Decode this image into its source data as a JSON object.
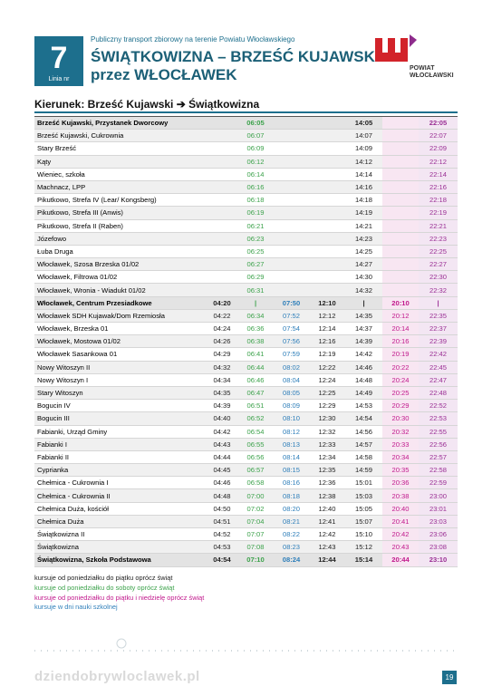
{
  "header": {
    "line_number": "7",
    "line_label": "Linia nr",
    "subtitle": "Publiczny transport zbiorowy na terenie Powiatu Włocławskiego",
    "title": "ŚWIĄTKOWIZNA – BRZEŚĆ KUJAWSKI",
    "title_line2": "przez WŁOCŁAWEK",
    "logo_text": "POWIAT WŁOCŁAWSKI"
  },
  "direction": "Kierunek: Brześć Kujawski ➔ Świątkowizna",
  "table": {
    "rows": [
      [
        "Brześć Kujawski, Przystanek Dworcowy",
        null,
        "06:05",
        null,
        null,
        "14:05",
        null,
        "22:05"
      ],
      [
        "Brześć Kujawski, Cukrownia",
        null,
        "06:07",
        null,
        null,
        "14:07",
        null,
        "22:07"
      ],
      [
        "Stary Brześć",
        null,
        "06:09",
        null,
        null,
        "14:09",
        null,
        "22:09"
      ],
      [
        "Kąty",
        null,
        "06:12",
        null,
        null,
        "14:12",
        null,
        "22:12"
      ],
      [
        "Wieniec, szkoła",
        null,
        "06:14",
        null,
        null,
        "14:14",
        null,
        "22:14"
      ],
      [
        "Machnacz, LPP",
        null,
        "06:16",
        null,
        null,
        "14:16",
        null,
        "22:16"
      ],
      [
        "Pikutkowo, Strefa IV (Lear/ Kongsberg)",
        null,
        "06:18",
        null,
        null,
        "14:18",
        null,
        "22:18"
      ],
      [
        "Pikutkowo, Strefa III (Anwis)",
        null,
        "06:19",
        null,
        null,
        "14:19",
        null,
        "22:19"
      ],
      [
        "Pikutkowo, Strefa II (Raben)",
        null,
        "06:21",
        null,
        null,
        "14:21",
        null,
        "22:21"
      ],
      [
        "Józefowo",
        null,
        "06:23",
        null,
        null,
        "14:23",
        null,
        "22:23"
      ],
      [
        "Łuba Druga",
        null,
        "06:25",
        null,
        null,
        "14:25",
        null,
        "22:25"
      ],
      [
        "Włocławek, Szosa Brzeska 01/02",
        null,
        "06:27",
        null,
        null,
        "14:27",
        null,
        "22:27"
      ],
      [
        "Włocławek, Filtrowa 01/02",
        null,
        "06:29",
        null,
        null,
        "14:30",
        null,
        "22:30"
      ],
      [
        "Włocławek, Wronia - Wiadukt 01/02",
        null,
        "06:31",
        null,
        null,
        "14:32",
        null,
        "22:32"
      ],
      [
        "Włocławek, Centrum Przesiadkowe",
        "04:20",
        "|",
        "07:50",
        "12:10",
        "|",
        "20:10",
        "|"
      ],
      [
        "Włocławek SDH Kujawak/Dom Rzemiosła",
        "04:22",
        "06:34",
        "07:52",
        "12:12",
        "14:35",
        "20:12",
        "22:35"
      ],
      [
        "Włocławek, Brzeska 01",
        "04:24",
        "06:36",
        "07:54",
        "12:14",
        "14:37",
        "20:14",
        "22:37"
      ],
      [
        "Włocławek, Mostowa 01/02",
        "04:26",
        "06:38",
        "07:56",
        "12:16",
        "14:39",
        "20:16",
        "22:39"
      ],
      [
        "Włocławek Sasankowa 01",
        "04:29",
        "06:41",
        "07:59",
        "12:19",
        "14:42",
        "20:19",
        "22:42"
      ],
      [
        "Nowy Witoszyn II",
        "04:32",
        "06:44",
        "08:02",
        "12:22",
        "14:46",
        "20:22",
        "22:45"
      ],
      [
        "Nowy Witoszyn I",
        "04:34",
        "06:46",
        "08:04",
        "12:24",
        "14:48",
        "20:24",
        "22:47"
      ],
      [
        "Stary Witoszyn",
        "04:35",
        "06:47",
        "08:05",
        "12:25",
        "14:49",
        "20:25",
        "22:48"
      ],
      [
        "Bogucin IV",
        "04:39",
        "06:51",
        "08:09",
        "12:29",
        "14:53",
        "20:29",
        "22:52"
      ],
      [
        "Bogucin III",
        "04:40",
        "06:52",
        "08:10",
        "12:30",
        "14:54",
        "20:30",
        "22:53"
      ],
      [
        "Fabianki, Urząd Gminy",
        "04:42",
        "06:54",
        "08:12",
        "12:32",
        "14:56",
        "20:32",
        "22:55"
      ],
      [
        "Fabianki I",
        "04:43",
        "06:55",
        "08:13",
        "12:33",
        "14:57",
        "20:33",
        "22:56"
      ],
      [
        "Fabianki II",
        "04:44",
        "06:56",
        "08:14",
        "12:34",
        "14:58",
        "20:34",
        "22:57"
      ],
      [
        "Cyprianka",
        "04:45",
        "06:57",
        "08:15",
        "12:35",
        "14:59",
        "20:35",
        "22:58"
      ],
      [
        "Chełmica - Cukrownia I",
        "04:46",
        "06:58",
        "08:16",
        "12:36",
        "15:01",
        "20:36",
        "22:59"
      ],
      [
        "Chełmica - Cukrownia II",
        "04:48",
        "07:00",
        "08:18",
        "12:38",
        "15:03",
        "20:38",
        "23:00"
      ],
      [
        "Chełmica Duża, kościół",
        "04:50",
        "07:02",
        "08:20",
        "12:40",
        "15:05",
        "20:40",
        "23:01"
      ],
      [
        "Chełmica Duża",
        "04:51",
        "07:04",
        "08:21",
        "12:41",
        "15:07",
        "20:41",
        "23:03"
      ],
      [
        "Świątkowizna II",
        "04:52",
        "07:07",
        "08:22",
        "12:42",
        "15:10",
        "20:42",
        "23:06"
      ],
      [
        "Świątkowizna",
        "04:53",
        "07:08",
        "08:23",
        "12:43",
        "15:12",
        "20:43",
        "23:08"
      ],
      [
        "Świątkowizna, Szkoła Podstawowa",
        "04:54",
        "07:10",
        "08:24",
        "12:44",
        "15:14",
        "20:44",
        "23:10"
      ]
    ]
  },
  "notes": [
    "kursuje od poniedziałku do piątku oprócz świąt",
    "kursuje od poniedziałku do soboty oprócz świąt",
    "kursuje od poniedziałku do piątku i niedzielę oprócz świąt",
    "kursuje w dni nauki szkolnej"
  ],
  "footer": {
    "watermark": "dziendobrywloclawek.pl",
    "page": "19"
  }
}
